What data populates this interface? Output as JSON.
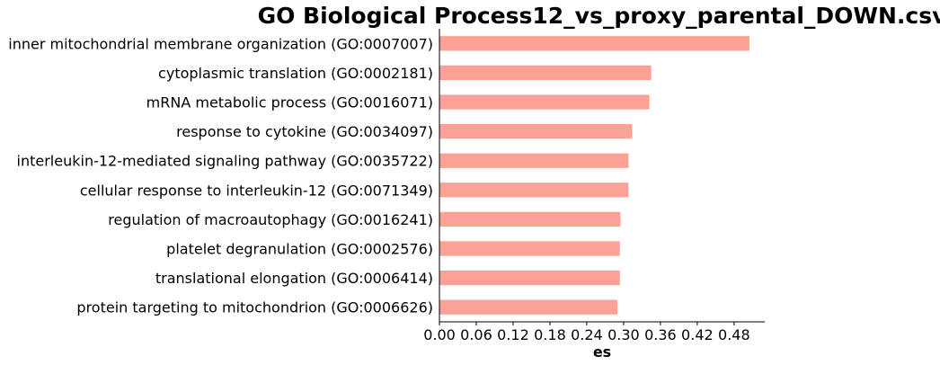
{
  "chart_data": {
    "type": "bar",
    "orientation": "horizontal",
    "title": "GO Biological Process12_vs_proxy_parental_DOWN.csv",
    "xlabel": "es",
    "ylabel": "",
    "bar_color": "#fca195",
    "xlim": [
      0,
      0.53
    ],
    "xticks": [
      "0.00",
      "0.06",
      "0.12",
      "0.18",
      "0.24",
      "0.30",
      "0.36",
      "0.42",
      "0.48"
    ],
    "categories": [
      "inner mitochondrial membrane organization (GO:0007007)",
      "cytoplasmic translation (GO:0002181)",
      "mRNA metabolic process (GO:0016071)",
      "response to cytokine (GO:0034097)",
      "interleukin-12-mediated signaling pathway (GO:0035722)",
      "cellular response to interleukin-12 (GO:0071349)",
      "regulation of macroautophagy (GO:0016241)",
      "platelet degranulation (GO:0002576)",
      "translational elongation (GO:0006414)",
      "protein targeting to mitochondrion (GO:0006626)"
    ],
    "values": [
      0.505,
      0.345,
      0.342,
      0.314,
      0.308,
      0.308,
      0.295,
      0.294,
      0.294,
      0.29
    ],
    "grid": false,
    "legend": "none"
  }
}
